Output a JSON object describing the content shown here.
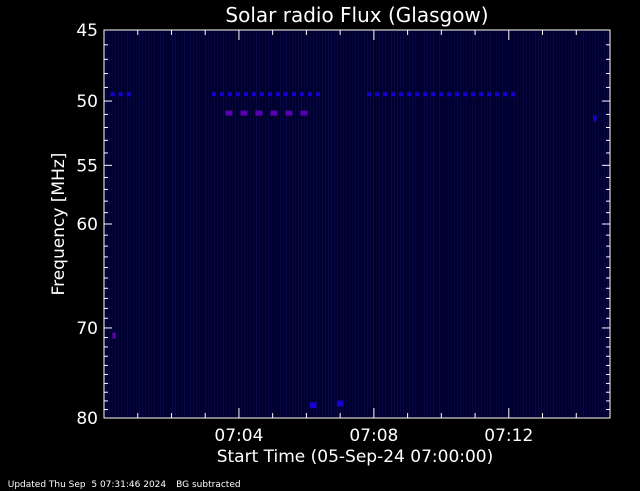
{
  "chart_data": {
    "type": "heatmap",
    "title": "Solar radio Flux (Glasgow)",
    "xlabel": "Start Time (05-Sep-24 07:00:00)",
    "ylabel": "Frequency [MHz]",
    "x_unit": "minutes after 07:00:00",
    "xlim": [
      0,
      15
    ],
    "ylim": [
      45,
      80
    ],
    "y_scale": "log",
    "y_inverted": true,
    "y_ticks": [
      45,
      50,
      55,
      60,
      70,
      80
    ],
    "y_tick_labels": [
      "45",
      "50",
      "55",
      "60",
      "70",
      "80"
    ],
    "x_ticks": [
      4,
      8,
      12
    ],
    "x_tick_labels": [
      "07:04",
      "07:08",
      "07:12"
    ],
    "grid": false,
    "background_color": "#000033",
    "colors": {
      "background": "#000000",
      "plot_area": "#00002e",
      "axis": "#ffffff",
      "text": "#ffffff",
      "weak_signal": "#1800d0",
      "strong_signal": "#5a00b0"
    },
    "features": [
      {
        "name": "interference band",
        "freq_mhz": 49.5,
        "t_start_min": 0.2,
        "t_end_min": 1.0,
        "intensity": "weak"
      },
      {
        "name": "interference band",
        "freq_mhz": 49.5,
        "t_start_min": 3.2,
        "t_end_min": 6.4,
        "intensity": "weak"
      },
      {
        "name": "interference band",
        "freq_mhz": 49.5,
        "t_start_min": 7.8,
        "t_end_min": 12.4,
        "intensity": "weak"
      },
      {
        "name": "interference band",
        "freq_mhz": 50.9,
        "t_start_min": 3.6,
        "t_end_min": 6.2,
        "intensity": "strong"
      },
      {
        "name": "spike",
        "freq_mhz": 70.8,
        "t_start_min": 0.25,
        "t_end_min": 0.35,
        "intensity": "strong"
      },
      {
        "name": "spike",
        "freq_mhz": 51.3,
        "t_start_min": 14.5,
        "t_end_min": 14.6,
        "intensity": "weak"
      },
      {
        "name": "spike",
        "freq_mhz": 78.5,
        "t_start_min": 6.1,
        "t_end_min": 6.3,
        "intensity": "weak"
      },
      {
        "name": "spike",
        "freq_mhz": 78.3,
        "t_start_min": 6.9,
        "t_end_min": 7.1,
        "intensity": "weak"
      }
    ]
  },
  "footer": {
    "updated": "Updated Thu Sep  5 07:31:46 2024",
    "note": "BG subtracted"
  }
}
